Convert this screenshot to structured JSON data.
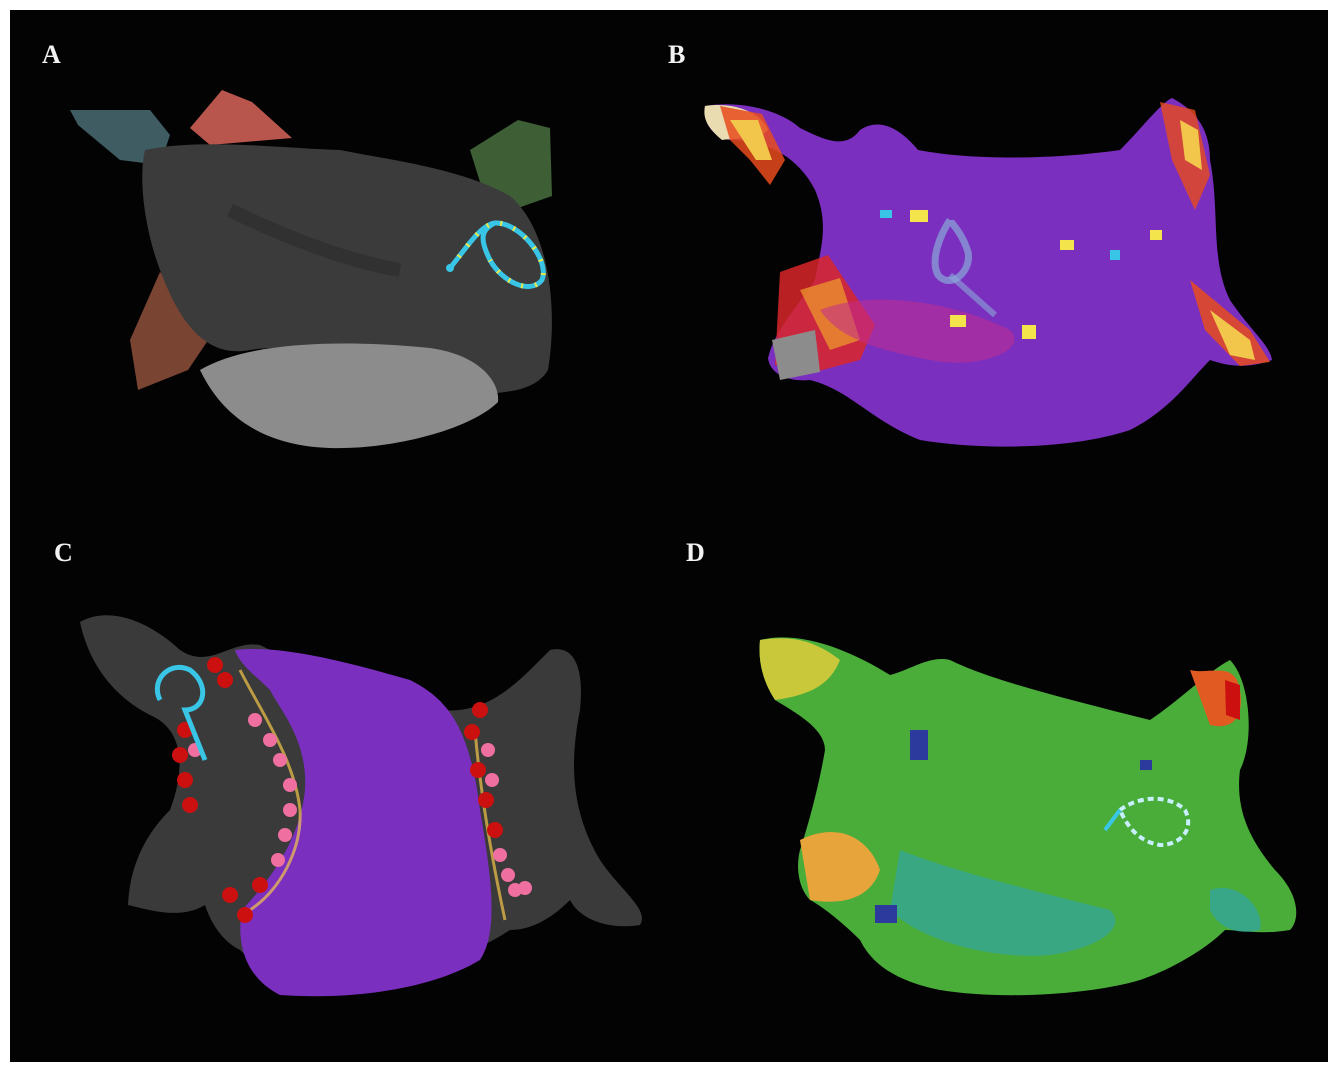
{
  "figure": {
    "panels": [
      {
        "label": "A",
        "description_icon": "left-atrium-anatomy-shell"
      },
      {
        "label": "B",
        "description_icon": "left-atrium-voltage-map"
      },
      {
        "label": "C",
        "description_icon": "left-atrium-ablation-lesion-map"
      },
      {
        "label": "D",
        "description_icon": "left-atrium-activation-map"
      }
    ],
    "colors": {
      "background": "#030303",
      "shell_gray": "#3a3a3a",
      "catheter_cyan": "#39c6e6",
      "voltage_purple": "#7a2fbf",
      "lesion_red": "#cc1010",
      "lesion_pink": "#ef6fa0",
      "activation_green": "#4aad3a"
    }
  }
}
